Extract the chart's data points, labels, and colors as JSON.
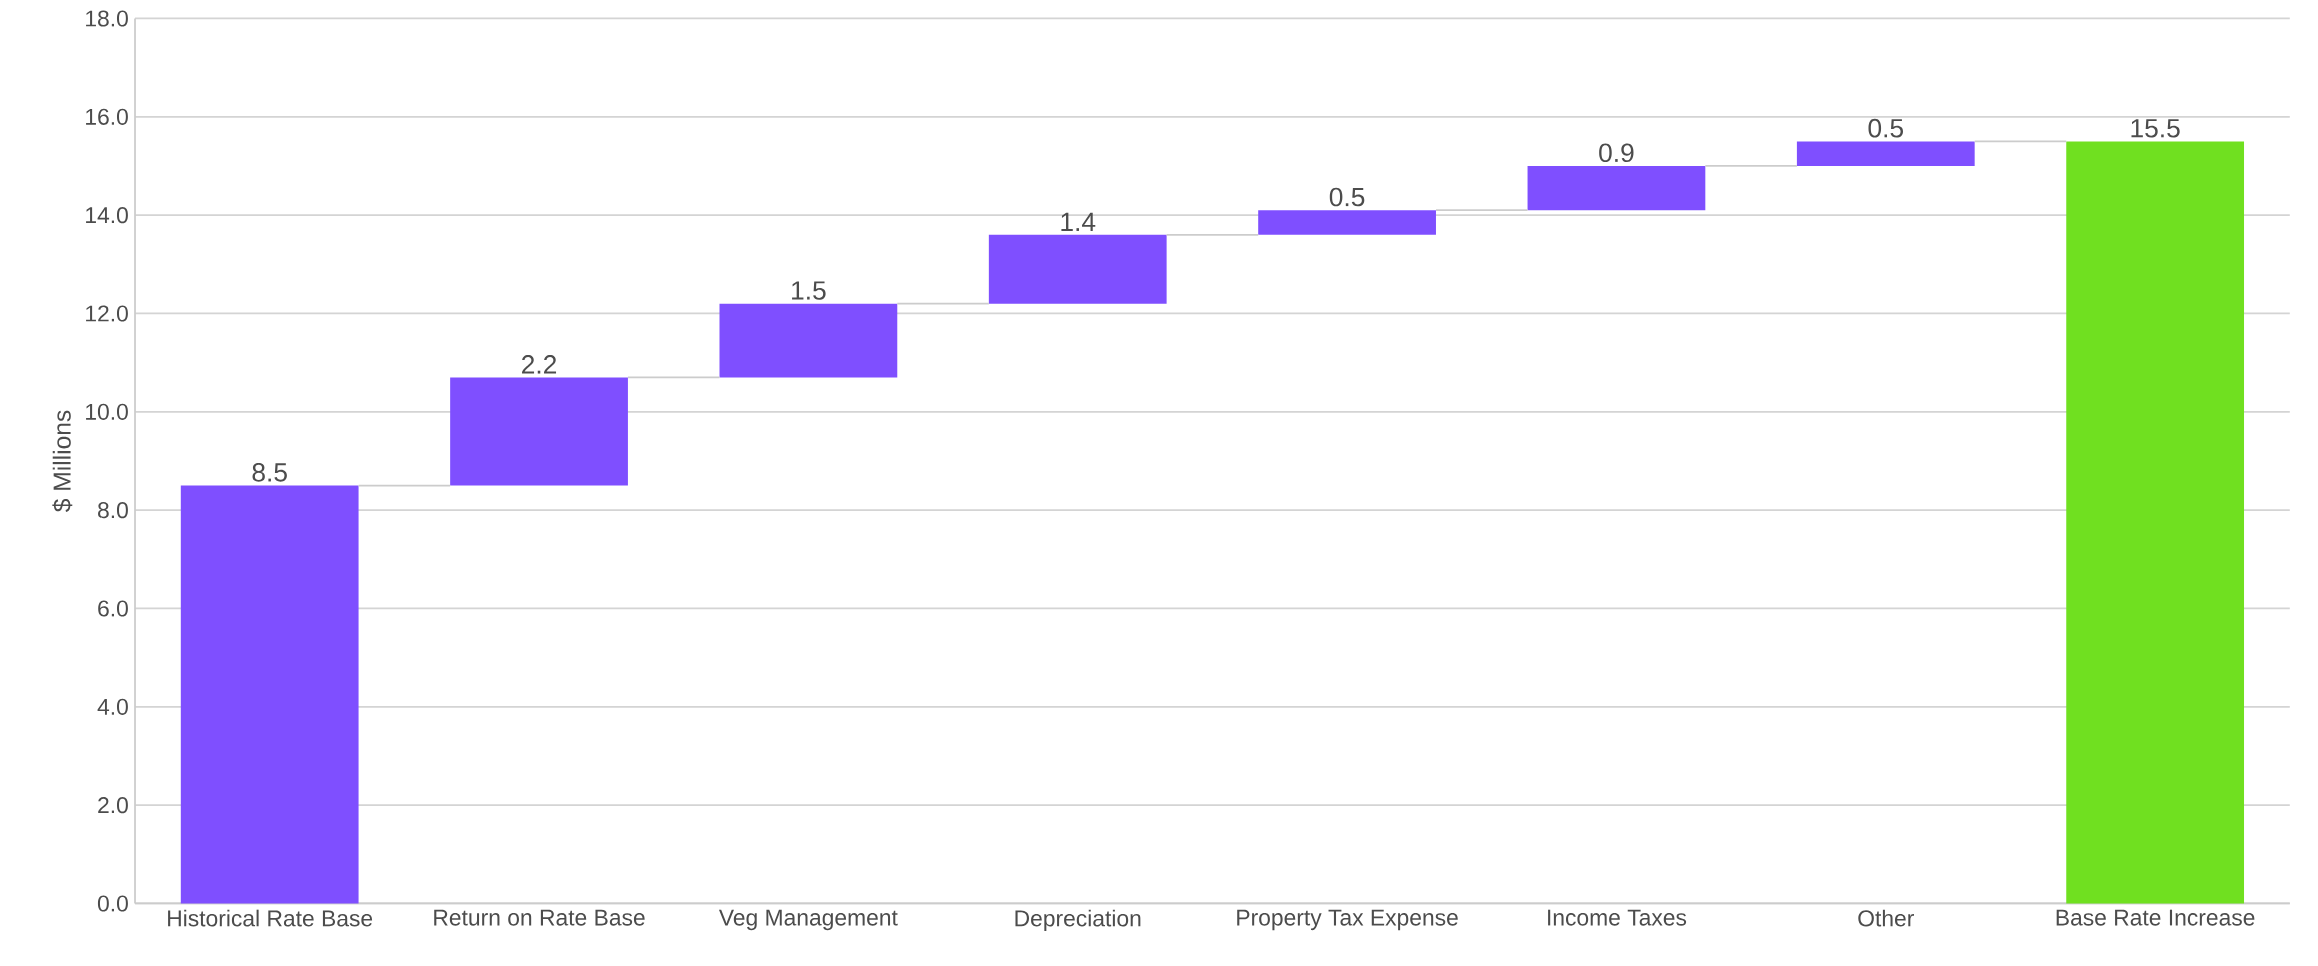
{
  "chart_data": {
    "type": "bar",
    "ylabel": "$ Millions",
    "categories": [
      "Historical Rate Base",
      "Return on Rate Base",
      "Veg Management",
      "Depreciation",
      "Property Tax Expense",
      "Income Taxes",
      "Other",
      "Base Rate Increase"
    ],
    "values": [
      8.5,
      2.2,
      1.5,
      1.4,
      0.5,
      0.9,
      0.5,
      15.5
    ],
    "base": [
      0,
      8.5,
      10.7,
      12.2,
      13.6,
      14.1,
      15.0,
      0
    ],
    "value_labels": [
      "8.5",
      "2.2",
      "1.5",
      "1.4",
      "0.5",
      "0.9",
      "0.5",
      "15.5"
    ],
    "colors": [
      "#7f4fff",
      "#7f4fff",
      "#7f4fff",
      "#7f4fff",
      "#7f4fff",
      "#7f4fff",
      "#7f4fff",
      "#70e020"
    ],
    "ylim": [
      0,
      18
    ],
    "yticks": [
      {
        "value": 0,
        "label": "0.0"
      },
      {
        "value": 2,
        "label": "2.0"
      },
      {
        "value": 4,
        "label": "4.0"
      },
      {
        "value": 6,
        "label": "6.0"
      },
      {
        "value": 8,
        "label": "8.0"
      },
      {
        "value": 10,
        "label": "10.0"
      },
      {
        "value": 12,
        "label": "12.0"
      },
      {
        "value": 14,
        "label": "14.0"
      },
      {
        "value": 16,
        "label": "16.0"
      },
      {
        "value": 18,
        "label": "18.0"
      }
    ],
    "grid": "y"
  }
}
